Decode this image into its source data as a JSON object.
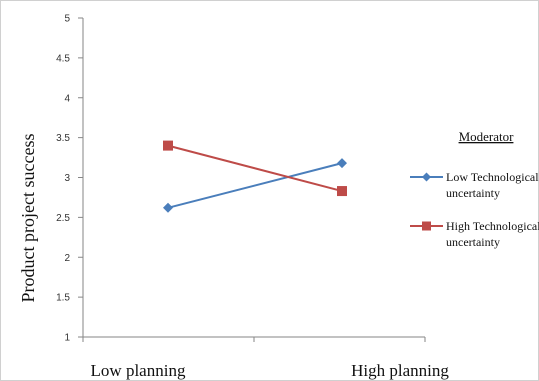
{
  "chart_data": {
    "type": "line",
    "title": "",
    "xlabel": "",
    "ylabel": "Product project success",
    "categories": [
      "Low planning",
      "High planning"
    ],
    "ylim": [
      1,
      5
    ],
    "yticks": [
      "1",
      "1.5",
      "2",
      "2.5",
      "3",
      "3.5",
      "4",
      "4.5",
      "5"
    ],
    "grid": false,
    "legend": {
      "title": "Moderator",
      "placement": "right"
    },
    "series": [
      {
        "name_lines": [
          "Low Technological",
          "uncertainty"
        ],
        "values": [
          2.62,
          3.18
        ],
        "color": "#4a7ebb",
        "marker": "diamond"
      },
      {
        "name_lines": [
          "High Technological",
          "uncertainty"
        ],
        "values": [
          3.4,
          2.83
        ],
        "color": "#be4b48",
        "marker": "square"
      }
    ]
  }
}
